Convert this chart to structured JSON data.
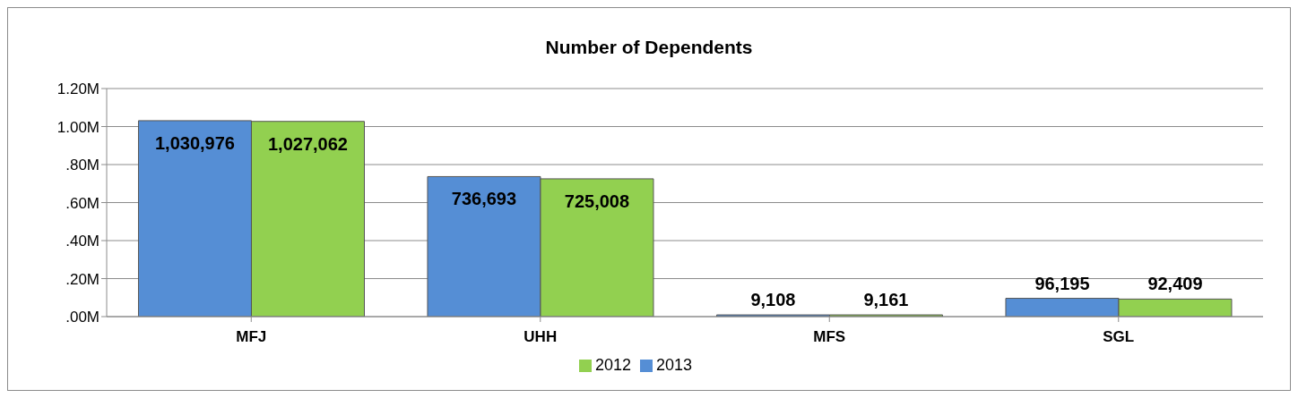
{
  "chart_data": {
    "type": "bar",
    "title": "Number of Dependents",
    "categories": [
      "MFJ",
      "UHH",
      "MFS",
      "SGL"
    ],
    "series": [
      {
        "name": "2013",
        "color": "#558ed5",
        "values": [
          1030976,
          736693,
          9108,
          96195
        ],
        "value_labels": [
          "1,030,976",
          "736,693",
          "9,108",
          "96,195"
        ]
      },
      {
        "name": "2012",
        "color": "#92d050",
        "values": [
          1027062,
          725008,
          9161,
          92409
        ],
        "value_labels": [
          "1,027,062",
          "725,008",
          "9,161",
          "92,409"
        ]
      }
    ],
    "ylim": [
      0,
      1200000
    ],
    "yticks": [
      {
        "value": 0,
        "label": ".00M"
      },
      {
        "value": 200000,
        "label": ".20M"
      },
      {
        "value": 400000,
        "label": ".40M"
      },
      {
        "value": 600000,
        "label": ".60M"
      },
      {
        "value": 800000,
        "label": ".80M"
      },
      {
        "value": 1000000,
        "label": "1.00M"
      },
      {
        "value": 1200000,
        "label": "1.20M"
      }
    ],
    "grid": "y",
    "legend": "bottom"
  }
}
